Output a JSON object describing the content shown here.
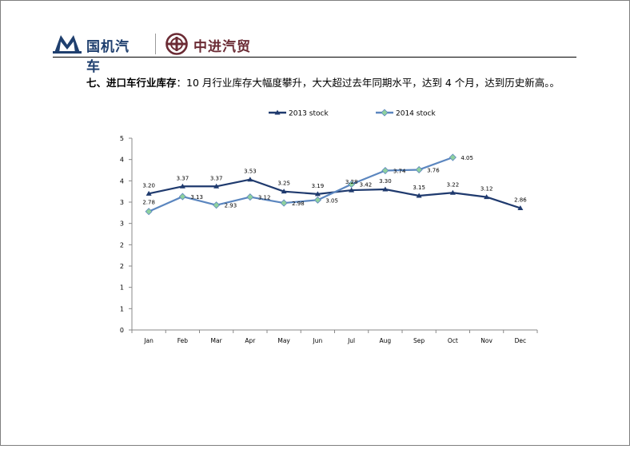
{
  "header": {
    "logo_left_text": "国机汽车",
    "logo_right_text": "中进汽贸"
  },
  "headline": {
    "strong": "七、进口车行业库存",
    "rest": "：10 月行业库存大幅度攀升，大大超过去年同期水平，达到 4 个月，达到历史新高。。"
  },
  "colors": {
    "series_2013": "#1f3a6e",
    "series_2014": "#5b86bf",
    "marker_2014_fill": "#8fd19e",
    "logo_left": "#1f3f6e",
    "logo_right": "#6b2b34"
  },
  "chart_data": {
    "type": "line",
    "categories": [
      "Jan",
      "Feb",
      "Mar",
      "Apr",
      "May",
      "Jun",
      "Jul",
      "Aug",
      "Sep",
      "Oct",
      "Nov",
      "Dec"
    ],
    "series": [
      {
        "name": "2013 stock",
        "values": [
          3.2,
          3.37,
          3.37,
          3.53,
          3.25,
          3.19,
          3.28,
          3.3,
          3.15,
          3.22,
          3.12,
          2.86
        ],
        "labels": [
          "3.20",
          "3.37",
          "3.37",
          "3.53",
          "3.25",
          "3.19",
          "3.28",
          "3.30",
          "3.15",
          "3.22",
          "3.12",
          "2.86"
        ],
        "marker": "triangle"
      },
      {
        "name": "2014 stock",
        "values": [
          2.78,
          3.13,
          2.93,
          3.12,
          2.98,
          3.05,
          3.42,
          3.74,
          3.76,
          4.05,
          null,
          null
        ],
        "labels": [
          "2.78",
          "3.13",
          "2.93",
          "3.12",
          "2.98",
          "3.05",
          "3.42",
          "3.74",
          "3.76",
          "4.05",
          "",
          ""
        ],
        "marker": "diamond"
      }
    ],
    "y_tick_labels": [
      "0",
      "1",
      "1",
      "2",
      "2",
      "3",
      "3",
      "4",
      "4",
      "5"
    ],
    "ylim": [
      0,
      4.5
    ],
    "legend_position": "top-center",
    "grid": false
  }
}
